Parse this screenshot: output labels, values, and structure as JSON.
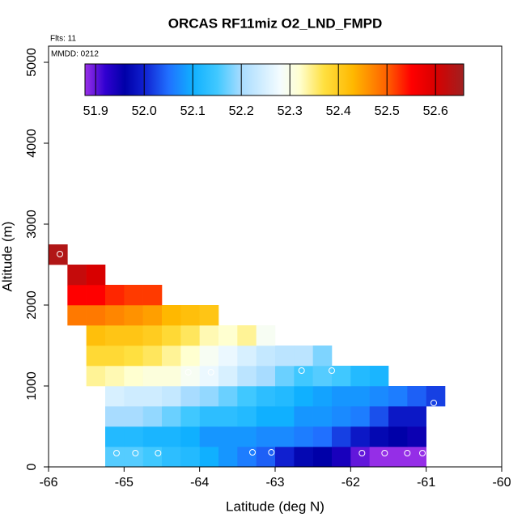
{
  "chart_data": {
    "type": "heatmap",
    "title": "ORCAS RF11miz O2_LND_FMPD",
    "subtitle": "Flts: 11",
    "annotation": "MMDD: 0212",
    "x_label": "Latitude (deg N)",
    "y_label": "Altitude (m)",
    "xlim": [
      -66,
      -60
    ],
    "xticks": [
      -66,
      -65,
      -64,
      -63,
      -62,
      -61,
      -60
    ],
    "ylim": [
      0,
      5200
    ],
    "yticks": [
      0,
      1000,
      2000,
      3000,
      4000,
      5000
    ],
    "rows": [
      {
        "y": 0,
        "x": [
          -65.25,
          -65,
          -64.75,
          -64.5,
          -64.25,
          -64,
          -63.75,
          -63.5,
          -63.25,
          -63,
          -62.75,
          -62.5,
          -62.25,
          -62,
          -61.75,
          -61.5,
          -61.25
        ],
        "values": [
          52.16,
          52.16,
          52.15,
          52.13,
          52.12,
          52.1,
          52.08,
          52.06,
          52.04,
          52.0,
          51.97,
          51.96,
          51.94,
          51.9,
          51.88,
          51.88,
          51.88
        ]
      },
      {
        "y": 250,
        "x": [
          -65.25,
          -65,
          -64.75,
          -64.5,
          -64.25,
          -64,
          -63.75,
          -63.5,
          -63.25,
          -63,
          -62.75,
          -62.5,
          -62.25,
          -62,
          -61.75,
          -61.5,
          -61.25
        ],
        "values": [
          52.12,
          52.12,
          52.11,
          52.11,
          52.1,
          52.08,
          52.08,
          52.08,
          52.07,
          52.07,
          52.06,
          52.05,
          52.02,
          51.99,
          51.97,
          51.96,
          51.95
        ]
      },
      {
        "y": 500,
        "x": [
          -65.25,
          -65,
          -64.75,
          -64.5,
          -64.25,
          -64,
          -63.75,
          -63.5,
          -63.25,
          -63,
          -62.75,
          -62.5,
          -62.25,
          -62,
          -61.75,
          -61.5,
          -61.25
        ],
        "values": [
          52.2,
          52.2,
          52.19,
          52.17,
          52.15,
          52.13,
          52.13,
          52.12,
          52.1,
          52.1,
          52.08,
          52.08,
          52.07,
          52.06,
          52.03,
          51.99,
          51.99
        ]
      },
      {
        "y": 750,
        "x": [
          -65.25,
          -65,
          -64.75,
          -64.5,
          -64.25,
          -64,
          -63.75,
          -63.5,
          -63.25,
          -63,
          -62.75,
          -62.5,
          -62.25,
          -62,
          -61.75,
          -61.5,
          -61.25,
          -61
        ],
        "values": [
          52.25,
          52.24,
          52.24,
          52.23,
          52.2,
          52.19,
          52.17,
          52.15,
          52.13,
          52.12,
          52.1,
          52.09,
          52.08,
          52.08,
          52.07,
          52.06,
          52.04,
          52.02
        ]
      },
      {
        "y": 1000,
        "x": [
          -65.5,
          -65.25,
          -65,
          -64.75,
          -64.5,
          -64.25,
          -64,
          -63.75,
          -63.5,
          -63.25,
          -63,
          -62.75,
          -62.5,
          -62.25,
          -62,
          -61.75
        ],
        "values": [
          52.34,
          52.33,
          52.32,
          52.31,
          52.31,
          52.29,
          52.27,
          52.25,
          52.22,
          52.2,
          52.17,
          52.15,
          52.16,
          52.15,
          52.12,
          52.11
        ]
      },
      {
        "y": 1250,
        "x": [
          -65.5,
          -65.25,
          -65,
          -64.75,
          -64.5,
          -64.25,
          -64,
          -63.75,
          -63.5,
          -63.25,
          -63,
          -62.75,
          -62.5
        ],
        "values": [
          52.38,
          52.38,
          52.37,
          52.36,
          52.34,
          52.32,
          52.29,
          52.27,
          52.25,
          52.23,
          52.22,
          52.22,
          52.18
        ]
      },
      {
        "y": 1500,
        "x": [
          -65.5,
          -65.25,
          -65,
          -64.75,
          -64.5,
          -64.25,
          -64,
          -63.75,
          -63.5,
          -63.25
        ],
        "values": [
          52.42,
          52.41,
          52.41,
          52.4,
          52.38,
          52.36,
          52.33,
          52.32,
          52.34,
          52.29
        ]
      },
      {
        "y": 1750,
        "x": [
          -65.75,
          -65.5,
          -65.25,
          -65,
          -64.75,
          -64.5,
          -64.25,
          -64
        ],
        "values": [
          52.48,
          52.48,
          52.47,
          52.46,
          52.45,
          52.43,
          52.42,
          52.41
        ]
      },
      {
        "y": 2000,
        "x": [
          -65.75,
          -65.5,
          -65.25,
          -65,
          -64.75
        ],
        "values": [
          52.55,
          52.55,
          52.53,
          52.52,
          52.52
        ]
      },
      {
        "y": 2250,
        "x": [
          -65.75,
          -65.5
        ],
        "values": [
          52.62,
          52.6
        ]
      },
      {
        "y": 2500,
        "x": [
          -66
        ],
        "values": [
          52.64
        ]
      }
    ],
    "points": {
      "x": [
        -65.1,
        -64.85,
        -64.55,
        -63.3,
        -63.05,
        -61.85,
        -61.55,
        -61.25,
        -61.05,
        -65.85,
        -64.15,
        -63.85,
        -62.65,
        -62.25,
        -60.9
      ],
      "y": [
        170,
        170,
        170,
        180,
        180,
        170,
        170,
        170,
        170,
        2630,
        1170,
        1170,
        1190,
        1190,
        790
      ]
    },
    "marker_color": "#ffffff",
    "colorbar_range": [
      51.878,
      52.658
    ],
    "colorbar_ticks": [
      51.9,
      {
        "value": 52,
        "label": "52.0"
      },
      52.1,
      52.2,
      52.3,
      52.4,
      52.5,
      52.6
    ],
    "colorscale": [
      [
        51.878,
        "#9a30e8"
      ],
      [
        51.92,
        "#3000d0"
      ],
      [
        51.96,
        "#0000a8"
      ],
      [
        52.0,
        "#1020d0"
      ],
      [
        52.05,
        "#2070ff"
      ],
      [
        52.1,
        "#10b0ff"
      ],
      [
        52.15,
        "#40c8ff"
      ],
      [
        52.2,
        "#a8dcff"
      ],
      [
        52.28,
        "#f4fcff"
      ],
      [
        52.32,
        "#ffffd0"
      ],
      [
        52.37,
        "#ffe040"
      ],
      [
        52.43,
        "#ffb800"
      ],
      [
        52.5,
        "#ff6000"
      ],
      [
        52.55,
        "#ff0000"
      ],
      [
        52.6,
        "#d80000"
      ],
      [
        52.658,
        "#a02020"
      ]
    ]
  }
}
